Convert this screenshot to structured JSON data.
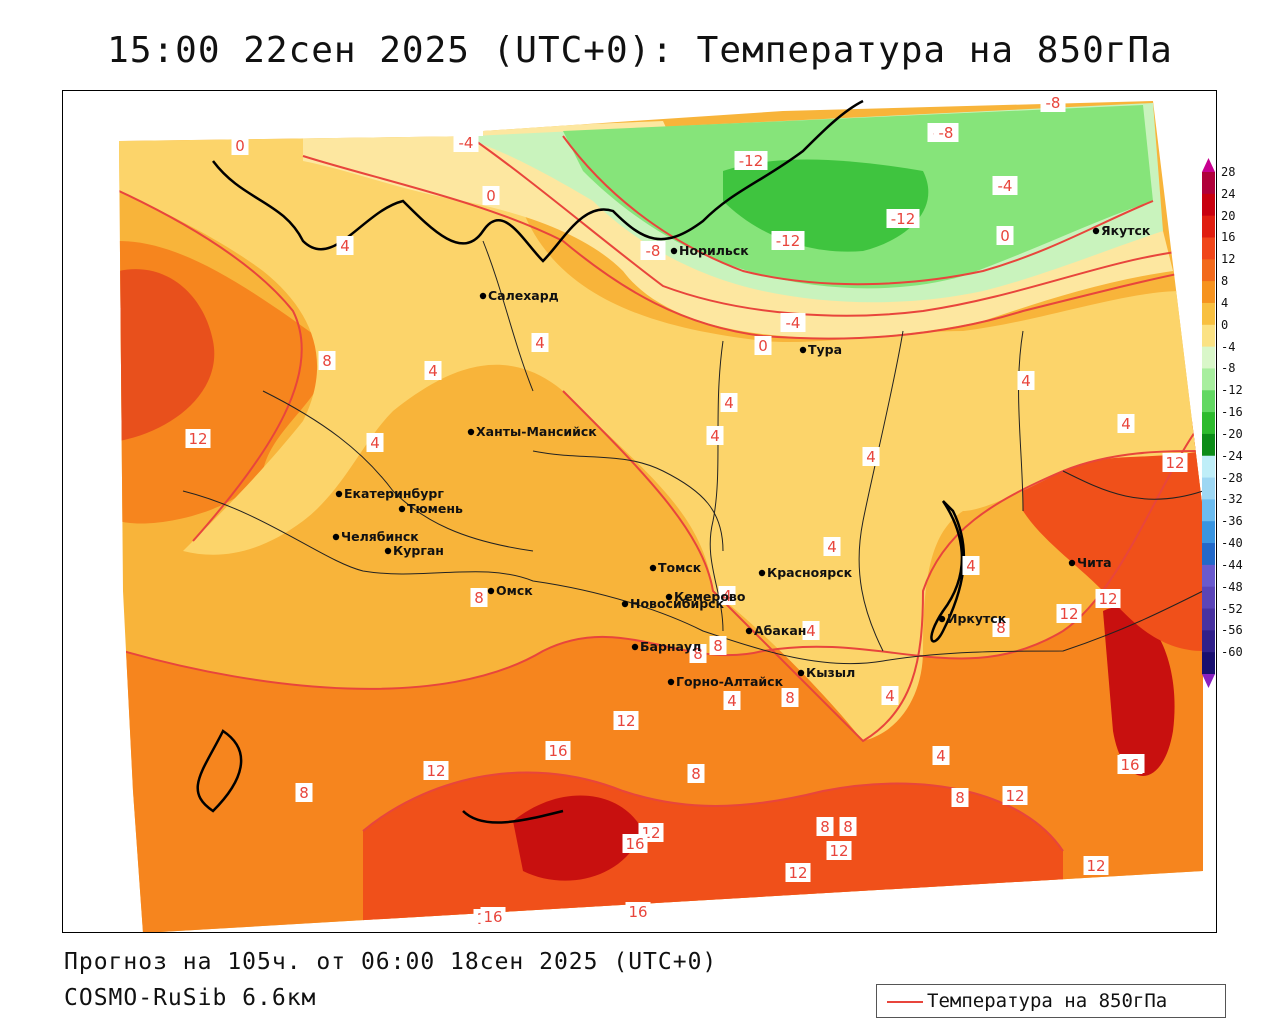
{
  "title": "15:00 22сен 2025 (UTC+0): Температура на 850гПа",
  "forecast_line": "Прогноз на 105ч. от 06:00 18сен 2025 (UTC+0)",
  "model_line": "COSMO-RuSib 6.6км",
  "legend": {
    "label": "Температура на 850гПа",
    "line_color": "#e8453c"
  },
  "colorbar": {
    "ticks": [
      "28",
      "24",
      "20",
      "16",
      "12",
      "8",
      "4",
      "0",
      "-4",
      "-8",
      "-12",
      "-16",
      "-20",
      "-24",
      "-28",
      "-32",
      "-36",
      "-40",
      "-44",
      "-48",
      "-52",
      "-56",
      "-60"
    ],
    "colors": [
      "#b0003a",
      "#c8000f",
      "#e01e10",
      "#f0461a",
      "#f26a1c",
      "#f6931f",
      "#f8c040",
      "#fbe284",
      "#d9f7c9",
      "#a7ee9e",
      "#62d862",
      "#2dbb2d",
      "#0c8c18",
      "#bfeef8",
      "#9dd7f3",
      "#6cbcef",
      "#3a95e0",
      "#2369c8",
      "#6a5acd",
      "#5b45b8",
      "#4832a0",
      "#30208a",
      "#180f6f"
    ]
  },
  "cities": [
    {
      "name": "Норильск"
    },
    {
      "name": "Якутск"
    },
    {
      "name": "Салехард"
    },
    {
      "name": "Тура"
    },
    {
      "name": "Ханты-Мансийск"
    },
    {
      "name": "Екатеринбург"
    },
    {
      "name": "Тюмень"
    },
    {
      "name": "Челябинск"
    },
    {
      "name": "Курган"
    },
    {
      "name": "Омск"
    },
    {
      "name": "Новосибирск"
    },
    {
      "name": "Томск"
    },
    {
      "name": "Кемерово"
    },
    {
      "name": "Красноярск"
    },
    {
      "name": "Барнаул"
    },
    {
      "name": "Абакан"
    },
    {
      "name": "Горно-Алтайск"
    },
    {
      "name": "Кызыл"
    },
    {
      "name": "Иркутск"
    },
    {
      "name": "Чита"
    }
  ],
  "isotherm_labels": [
    "-12",
    "-12",
    "-12",
    "-8",
    "-8",
    "-8",
    "-8",
    "-4",
    "-4",
    "-4",
    "0",
    "0",
    "0",
    "0",
    "4",
    "4",
    "4",
    "4",
    "4",
    "4",
    "4",
    "4",
    "4",
    "4",
    "4",
    "4",
    "4",
    "4",
    "4",
    "4",
    "8",
    "8",
    "8",
    "8",
    "8",
    "8",
    "8",
    "8",
    "8",
    "8",
    "8",
    "12",
    "12",
    "12",
    "12",
    "12",
    "12",
    "12",
    "12",
    "12",
    "12",
    "12",
    "12",
    "16",
    "16",
    "16",
    "16",
    "16",
    "16"
  ],
  "colors": {
    "warm_28": "#a8001c",
    "warm_20": "#e12c10",
    "warm_16": "#f0501a",
    "warm_12": "#f6851e",
    "warm_8": "#f8b43a",
    "warm_4": "#fcd46a",
    "zero": "#fde7a0",
    "cool_m4": "#c9f3bd",
    "cool_m8": "#86e47a",
    "cool_m12": "#3fc43f",
    "isoline": "#e8453c",
    "border": "#000000"
  }
}
